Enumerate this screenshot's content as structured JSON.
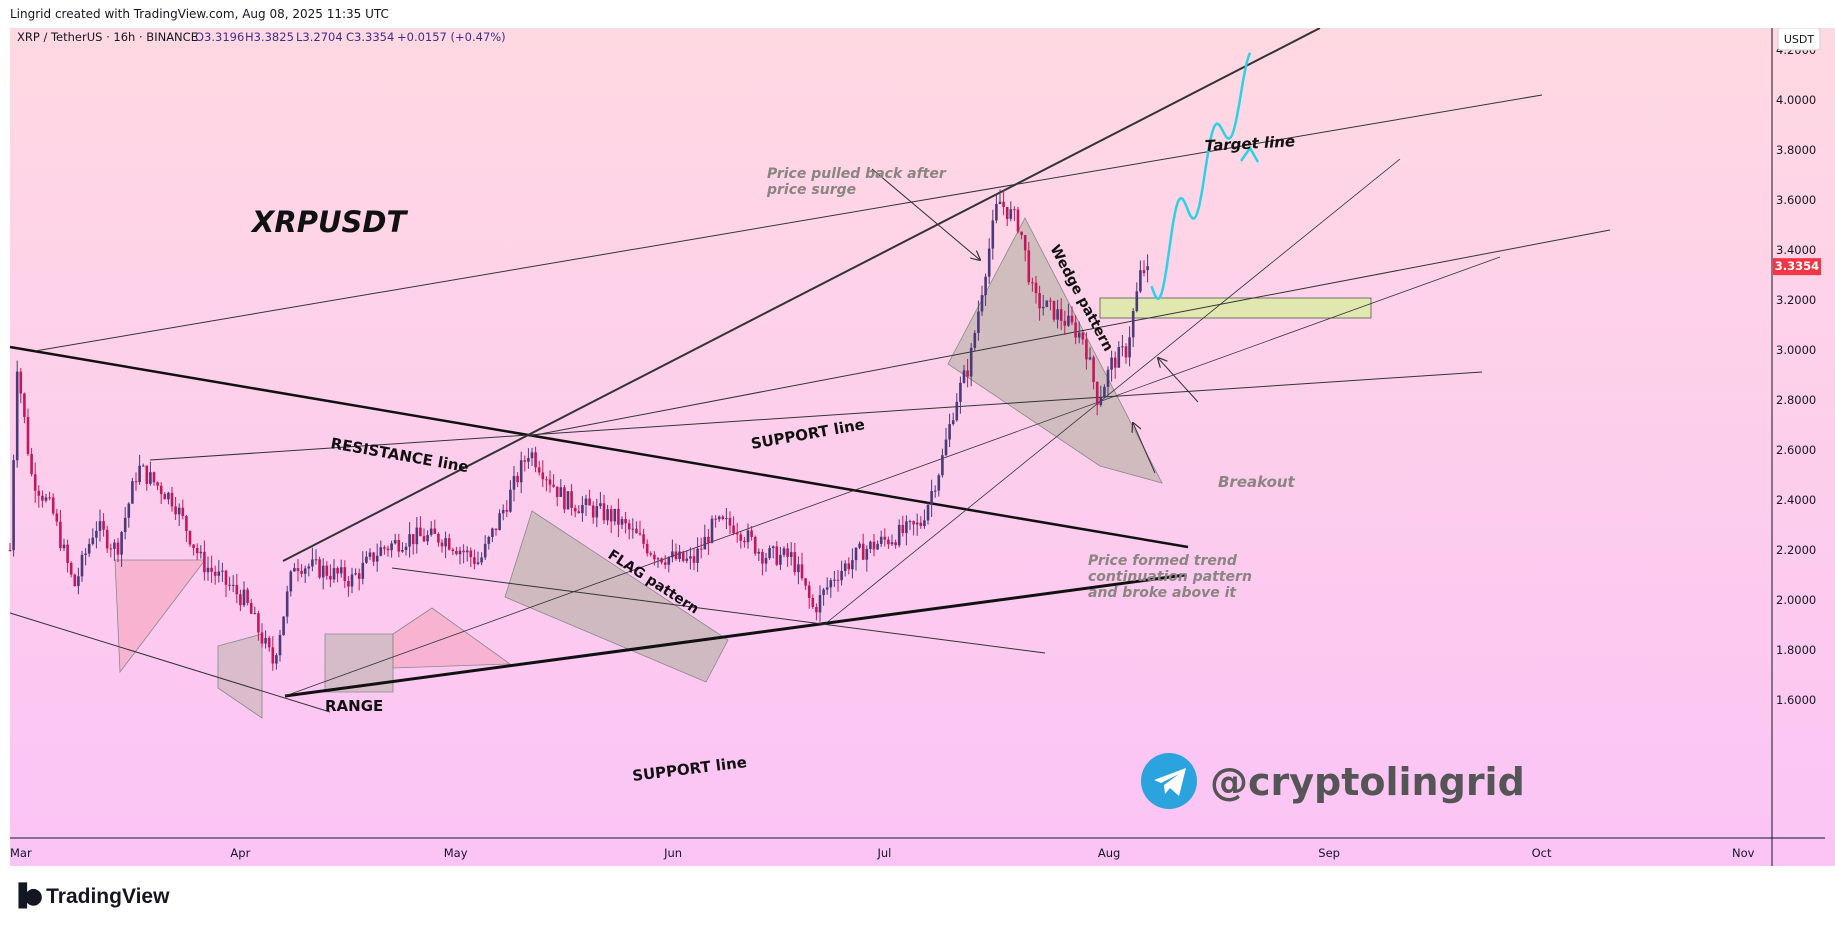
{
  "header": {
    "credit": "Lingrid created with TradingView.com, Aug 08, 2025 11:35 UTC"
  },
  "legend": {
    "symbol": "XRP / TetherUS · 16h · BINANCE",
    "open": "O3.3196",
    "high": "H3.3825",
    "low": "L3.2704",
    "close": "C3.3354",
    "change": "+0.0157 (+0.47%)"
  },
  "price_scale": {
    "currency": "USDT",
    "current_price": "3.3354",
    "current_price_color": "#f23645",
    "labels": [
      "4.2000",
      "4.0000",
      "3.8000",
      "3.6000",
      "3.4000",
      "3.2000",
      "3.0000",
      "2.8000",
      "2.6000",
      "2.4000",
      "2.2000",
      "2.0000",
      "1.8000",
      "1.6000"
    ]
  },
  "time_scale": {
    "labels": [
      "Mar",
      "Apr",
      "May",
      "Jun",
      "Jul",
      "Aug",
      "Sep",
      "Oct",
      "Nov"
    ]
  },
  "annotations": {
    "ticker": "XRPUSDT",
    "resistance": "RESISTANCE line",
    "support_upper": "SUPPORT line",
    "support_lower": "SUPPORT line",
    "flag": "FLAG pattern",
    "wedge": "Wedge pattern",
    "range": "RANGE",
    "target": "Target line",
    "breakout": "Breakout",
    "pullback_1": "Price pulled back after",
    "pullback_2": "price surge",
    "continuation_1": "Price formed trend",
    "continuation_2": "continuation pattern",
    "continuation_3": "and broke above it",
    "telegram": "@cryptolingrid"
  },
  "footer": {
    "brand": "TradingView"
  },
  "colors": {
    "bg_top": "#ffd9e2",
    "bg_bottom": "#fbc4f5",
    "bull": "#4a3a78",
    "bear": "#c2185b",
    "projection": "#29d3e6",
    "zone": "#e0e8b0",
    "pattern_fill": "#bdb3ad"
  },
  "chart_data": {
    "type": "candlestick",
    "title": "XRPUSDT",
    "interval": "16h",
    "exchange": "BINANCE",
    "x_range": [
      "2025-03-01",
      "2025-11-01"
    ],
    "ylim": [
      1.52,
      4.27
    ],
    "ohlc_last": {
      "open": 3.3196,
      "high": 3.3825,
      "low": 3.2704,
      "close": 3.3354
    },
    "price_path": [
      {
        "date": "2025-03-01",
        "price": 2.2
      },
      {
        "date": "2025-03-02",
        "price": 2.95
      },
      {
        "date": "2025-03-04",
        "price": 2.5
      },
      {
        "date": "2025-03-07",
        "price": 2.35
      },
      {
        "date": "2025-03-10",
        "price": 2.05
      },
      {
        "date": "2025-03-13",
        "price": 2.3
      },
      {
        "date": "2025-03-16",
        "price": 2.2
      },
      {
        "date": "2025-03-19",
        "price": 2.53
      },
      {
        "date": "2025-03-24",
        "price": 2.4
      },
      {
        "date": "2025-03-28",
        "price": 2.15
      },
      {
        "date": "2025-04-03",
        "price": 2.0
      },
      {
        "date": "2025-04-07",
        "price": 1.75
      },
      {
        "date": "2025-04-10",
        "price": 2.15
      },
      {
        "date": "2025-04-14",
        "price": 2.12
      },
      {
        "date": "2025-04-18",
        "price": 2.08
      },
      {
        "date": "2025-04-22",
        "price": 2.2
      },
      {
        "date": "2025-04-26",
        "price": 2.25
      },
      {
        "date": "2025-05-01",
        "price": 2.25
      },
      {
        "date": "2025-05-06",
        "price": 2.15
      },
      {
        "date": "2025-05-10",
        "price": 2.4
      },
      {
        "date": "2025-05-13",
        "price": 2.6
      },
      {
        "date": "2025-05-18",
        "price": 2.4
      },
      {
        "date": "2025-05-25",
        "price": 2.33
      },
      {
        "date": "2025-05-31",
        "price": 2.18
      },
      {
        "date": "2025-06-05",
        "price": 2.15
      },
      {
        "date": "2025-06-08",
        "price": 2.3
      },
      {
        "date": "2025-06-11",
        "price": 2.3
      },
      {
        "date": "2025-06-15",
        "price": 2.18
      },
      {
        "date": "2025-06-19",
        "price": 2.17
      },
      {
        "date": "2025-06-22",
        "price": 1.96
      },
      {
        "date": "2025-06-25",
        "price": 2.1
      },
      {
        "date": "2025-06-29",
        "price": 2.2
      },
      {
        "date": "2025-07-03",
        "price": 2.25
      },
      {
        "date": "2025-07-07",
        "price": 2.3
      },
      {
        "date": "2025-07-10",
        "price": 2.55
      },
      {
        "date": "2025-07-12",
        "price": 2.8
      },
      {
        "date": "2025-07-14",
        "price": 2.95
      },
      {
        "date": "2025-07-16",
        "price": 3.3
      },
      {
        "date": "2025-07-18",
        "price": 3.6
      },
      {
        "date": "2025-07-21",
        "price": 3.5
      },
      {
        "date": "2025-07-23",
        "price": 3.2
      },
      {
        "date": "2025-07-26",
        "price": 3.15
      },
      {
        "date": "2025-07-30",
        "price": 3.05
      },
      {
        "date": "2025-08-01",
        "price": 2.8
      },
      {
        "date": "2025-08-03",
        "price": 2.95
      },
      {
        "date": "2025-08-05",
        "price": 3.0
      },
      {
        "date": "2025-08-07",
        "price": 3.3
      },
      {
        "date": "2025-08-08",
        "price": 3.3354
      }
    ]
  }
}
